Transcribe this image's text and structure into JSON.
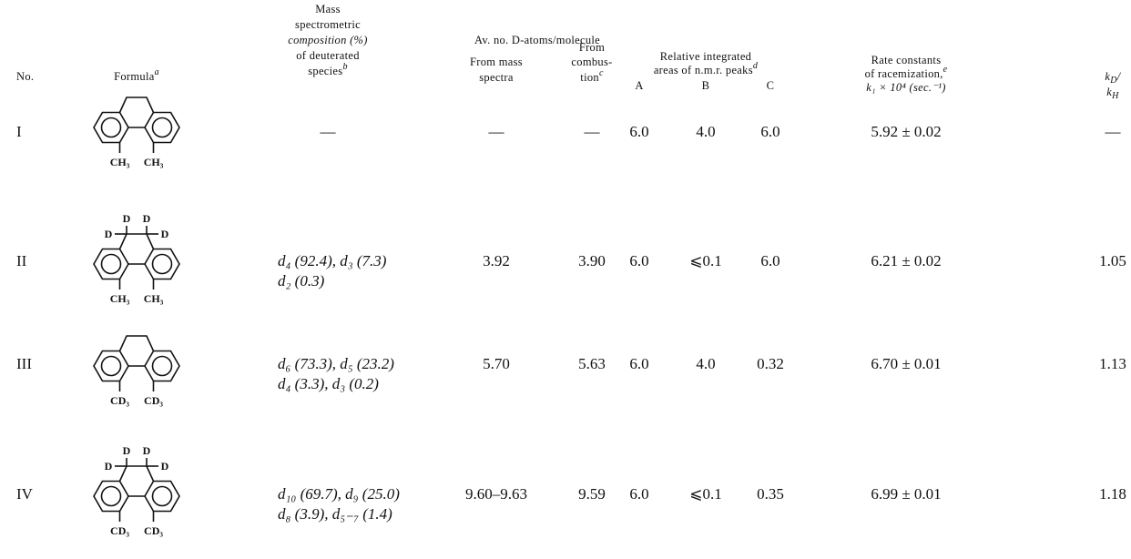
{
  "headers": {
    "no": "No.",
    "formula": "Formula",
    "formula_note": "a",
    "composition": [
      "Mass",
      "spectrometric",
      "composition (%)",
      "of deuterated",
      "species"
    ],
    "composition_note": "b",
    "av_no": "Av. no. D-atoms/molecule",
    "from_mass": [
      "From mass",
      "spectra"
    ],
    "from_combustion": [
      "From",
      "combus-",
      "tion"
    ],
    "from_combustion_note": "c",
    "nmr": [
      "Relative integrated",
      "areas of n.m.r. peaks"
    ],
    "nmr_note": "d",
    "peaks": [
      "A",
      "B",
      "C"
    ],
    "rate": [
      "Rate constants",
      "of racemization,"
    ],
    "rate_note": "e",
    "rate_units": "k₁ × 10⁴ (sec.⁻¹)",
    "isotope_top": [
      "k",
      "D",
      "/"
    ],
    "isotope_bottom": [
      "k",
      "H"
    ]
  },
  "rows": [
    {
      "no": "I",
      "formula": {
        "top": [],
        "side": [],
        "bottom": [
          "CH₃",
          "CH₃"
        ]
      },
      "composition": [
        "—"
      ],
      "from_mass": "—",
      "from_combustion": "—",
      "peaks": [
        "6.0",
        "4.0",
        "6.0"
      ],
      "rate": "5.92 ± 0.02",
      "isotope": "—"
    },
    {
      "no": "II",
      "formula": {
        "top": [
          "D",
          "D"
        ],
        "side": [
          "D",
          "D"
        ],
        "bottom": [
          "CH₃",
          "CH₃"
        ]
      },
      "composition": [
        "d₄ (92.4), d₃ (7.3)",
        "d₂ (0.3)"
      ],
      "from_mass": "3.92",
      "from_combustion": "3.90",
      "peaks": [
        "6.0",
        "⩽0.1",
        "6.0"
      ],
      "rate": "6.21 ± 0.02",
      "isotope": "1.05"
    },
    {
      "no": "III",
      "formula": {
        "top": [],
        "side": [],
        "bottom": [
          "CD₃",
          "CD₃"
        ]
      },
      "composition": [
        "d₆ (73.3), d₅ (23.2)",
        "d₄ (3.3), d₃ (0.2)"
      ],
      "from_mass": "5.70",
      "from_combustion": "5.63",
      "peaks": [
        "6.0",
        "4.0",
        "0.32"
      ],
      "rate": "6.70 ± 0.01",
      "isotope": "1.13"
    },
    {
      "no": "IV",
      "formula": {
        "top": [
          "D",
          "D"
        ],
        "side": [
          "D",
          "D"
        ],
        "bottom": [
          "CD₃",
          "CD₃"
        ]
      },
      "composition": [
        "d₁₀ (69.7), d₉ (25.0)",
        "d₈ (3.9), d₅₋₇ (1.4)"
      ],
      "from_mass": "9.60–9.63",
      "from_combustion": "9.59",
      "peaks": [
        "6.0",
        "⩽0.1",
        "0.35"
      ],
      "rate": "6.99 ± 0.01",
      "isotope": "1.18"
    }
  ]
}
